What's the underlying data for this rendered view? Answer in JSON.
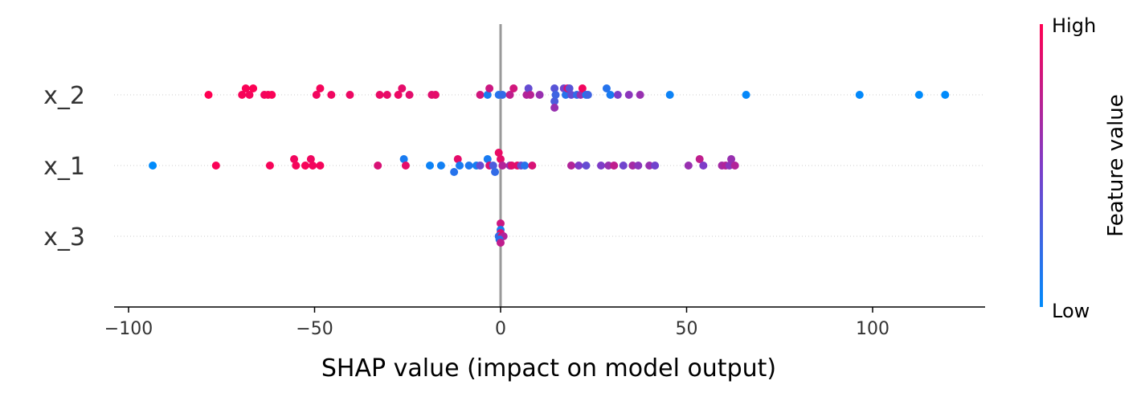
{
  "chart_data": {
    "type": "scatter",
    "title": "",
    "xlabel": "SHAP value (impact on model output)",
    "ylabel": "",
    "xlim": [
      -104,
      130
    ],
    "xticks": [
      -100,
      -50,
      0,
      50,
      100
    ],
    "xtick_labels": [
      "−100",
      "−50",
      "0",
      "50",
      "100"
    ],
    "features": [
      "x_2",
      "x_1",
      "x_3"
    ],
    "colorbar": {
      "label": "Feature value",
      "high_label": "High",
      "low_label": "Low",
      "high_color": "#ff0052",
      "mid_color": "#7e3cc8",
      "low_color": "#008bfb"
    },
    "series": [
      {
        "name": "x_2",
        "points": [
          {
            "shap": -78.5,
            "value": 1.0,
            "jitter": 0
          },
          {
            "shap": -69.5,
            "value": 0.97,
            "jitter": 0
          },
          {
            "shap": -68.5,
            "value": 0.98,
            "jitter": 1
          },
          {
            "shap": -67.5,
            "value": 0.96,
            "jitter": 0
          },
          {
            "shap": -66.5,
            "value": 0.99,
            "jitter": 1
          },
          {
            "shap": -63.5,
            "value": 0.95,
            "jitter": 0
          },
          {
            "shap": -62.5,
            "value": 0.97,
            "jitter": 0
          },
          {
            "shap": -61.5,
            "value": 0.98,
            "jitter": 0
          },
          {
            "shap": -49.5,
            "value": 0.95,
            "jitter": 0
          },
          {
            "shap": -48.5,
            "value": 0.96,
            "jitter": 1
          },
          {
            "shap": -45.5,
            "value": 0.94,
            "jitter": 0
          },
          {
            "shap": -40.5,
            "value": 0.93,
            "jitter": 0
          },
          {
            "shap": -32.5,
            "value": 0.92,
            "jitter": 0
          },
          {
            "shap": -30.5,
            "value": 0.91,
            "jitter": 0
          },
          {
            "shap": -27.5,
            "value": 0.93,
            "jitter": 0
          },
          {
            "shap": -26.5,
            "value": 0.9,
            "jitter": 1
          },
          {
            "shap": -24.5,
            "value": 0.89,
            "jitter": 0
          },
          {
            "shap": -18.5,
            "value": 0.88,
            "jitter": 0
          },
          {
            "shap": -17.5,
            "value": 0.9,
            "jitter": 0
          },
          {
            "shap": -5.5,
            "value": 0.82,
            "jitter": 0
          },
          {
            "shap": -3.5,
            "value": 0.1,
            "jitter": 0
          },
          {
            "shap": -3.0,
            "value": 0.8,
            "jitter": 1
          },
          {
            "shap": -0.5,
            "value": 0.15,
            "jitter": 0
          },
          {
            "shap": 0.5,
            "value": 0.2,
            "jitter": 0
          },
          {
            "shap": 2.5,
            "value": 0.75,
            "jitter": 0
          },
          {
            "shap": 3.5,
            "value": 0.82,
            "jitter": 1
          },
          {
            "shap": 7.0,
            "value": 0.7,
            "jitter": 0
          },
          {
            "shap": 7.5,
            "value": 0.4,
            "jitter": 1
          },
          {
            "shap": 8.0,
            "value": 0.72,
            "jitter": 0
          },
          {
            "shap": 10.5,
            "value": 0.6,
            "jitter": 0
          },
          {
            "shap": 14.5,
            "value": 0.35,
            "jitter": 1
          },
          {
            "shap": 14.5,
            "value": 0.3,
            "jitter": -1
          },
          {
            "shap": 14.5,
            "value": 0.6,
            "jitter": -2
          },
          {
            "shap": 14.8,
            "value": 0.25,
            "jitter": 0
          },
          {
            "shap": 17.0,
            "value": 0.45,
            "jitter": 1
          },
          {
            "shap": 17.5,
            "value": 0.15,
            "jitter": 0
          },
          {
            "shap": 18.0,
            "value": 0.9,
            "jitter": 1
          },
          {
            "shap": 18.5,
            "value": 0.35,
            "jitter": 1
          },
          {
            "shap": 19.0,
            "value": 0.4,
            "jitter": 0
          },
          {
            "shap": 20.5,
            "value": 0.2,
            "jitter": 0
          },
          {
            "shap": 21.5,
            "value": 0.6,
            "jitter": 0
          },
          {
            "shap": 22.0,
            "value": 0.95,
            "jitter": 1
          },
          {
            "shap": 23.0,
            "value": 0.1,
            "jitter": 0
          },
          {
            "shap": 23.5,
            "value": 0.25,
            "jitter": 0
          },
          {
            "shap": 28.5,
            "value": 0.15,
            "jitter": 1
          },
          {
            "shap": 29.5,
            "value": 0.1,
            "jitter": 0
          },
          {
            "shap": 31.5,
            "value": 0.5,
            "jitter": 0
          },
          {
            "shap": 34.5,
            "value": 0.55,
            "jitter": 0
          },
          {
            "shap": 37.5,
            "value": 0.6,
            "jitter": 0
          },
          {
            "shap": 45.5,
            "value": 0.05,
            "jitter": 0
          },
          {
            "shap": 66.0,
            "value": 0.02,
            "jitter": 0
          },
          {
            "shap": 96.5,
            "value": 0.01,
            "jitter": 0
          },
          {
            "shap": 112.5,
            "value": 0.0,
            "jitter": 0
          },
          {
            "shap": 119.5,
            "value": 0.0,
            "jitter": 0
          }
        ]
      },
      {
        "name": "x_1",
        "points": [
          {
            "shap": -93.5,
            "value": 0.0,
            "jitter": 0
          },
          {
            "shap": -76.5,
            "value": 0.98,
            "jitter": 0
          },
          {
            "shap": -62.0,
            "value": 0.97,
            "jitter": 0
          },
          {
            "shap": -55.5,
            "value": 0.95,
            "jitter": 1
          },
          {
            "shap": -55.0,
            "value": 0.96,
            "jitter": 0
          },
          {
            "shap": -52.5,
            "value": 0.97,
            "jitter": 0
          },
          {
            "shap": -51.0,
            "value": 0.94,
            "jitter": 1
          },
          {
            "shap": -50.5,
            "value": 0.95,
            "jitter": 0
          },
          {
            "shap": -48.5,
            "value": 0.96,
            "jitter": 0
          },
          {
            "shap": -33.0,
            "value": 0.85,
            "jitter": 0
          },
          {
            "shap": -26.0,
            "value": 0.1,
            "jitter": 1
          },
          {
            "shap": -25.5,
            "value": 0.9,
            "jitter": 0
          },
          {
            "shap": -19.0,
            "value": 0.05,
            "jitter": 0
          },
          {
            "shap": -16.0,
            "value": 0.07,
            "jitter": 0
          },
          {
            "shap": -12.5,
            "value": 0.15,
            "jitter": -1
          },
          {
            "shap": -11.5,
            "value": 0.9,
            "jitter": 1
          },
          {
            "shap": -11.0,
            "value": 0.1,
            "jitter": 0
          },
          {
            "shap": -8.5,
            "value": 0.12,
            "jitter": 0
          },
          {
            "shap": -6.5,
            "value": 0.08,
            "jitter": 0
          },
          {
            "shap": -5.5,
            "value": 0.4,
            "jitter": 0
          },
          {
            "shap": -3.5,
            "value": 0.1,
            "jitter": 1
          },
          {
            "shap": -3.0,
            "value": 0.85,
            "jitter": 0
          },
          {
            "shap": -2.0,
            "value": 0.3,
            "jitter": 0
          },
          {
            "shap": -1.5,
            "value": 0.2,
            "jitter": -1
          },
          {
            "shap": -0.5,
            "value": 0.92,
            "jitter": 2
          },
          {
            "shap": 0.0,
            "value": 0.9,
            "jitter": 1
          },
          {
            "shap": 0.5,
            "value": 0.7,
            "jitter": 0
          },
          {
            "shap": 2.5,
            "value": 0.6,
            "jitter": 0
          },
          {
            "shap": 3.0,
            "value": 0.88,
            "jitter": 0
          },
          {
            "shap": 4.5,
            "value": 0.9,
            "jitter": 0
          },
          {
            "shap": 5.5,
            "value": 0.4,
            "jitter": 0
          },
          {
            "shap": 6.5,
            "value": 0.15,
            "jitter": 0
          },
          {
            "shap": 8.5,
            "value": 0.85,
            "jitter": 0
          },
          {
            "shap": 19.0,
            "value": 0.7,
            "jitter": 0
          },
          {
            "shap": 21.0,
            "value": 0.5,
            "jitter": 0
          },
          {
            "shap": 23.0,
            "value": 0.4,
            "jitter": 0
          },
          {
            "shap": 27.0,
            "value": 0.5,
            "jitter": 0
          },
          {
            "shap": 29.0,
            "value": 0.6,
            "jitter": 0
          },
          {
            "shap": 30.5,
            "value": 0.75,
            "jitter": 0
          },
          {
            "shap": 33.0,
            "value": 0.45,
            "jitter": 0
          },
          {
            "shap": 35.5,
            "value": 0.65,
            "jitter": 0
          },
          {
            "shap": 37.0,
            "value": 0.55,
            "jitter": 0
          },
          {
            "shap": 40.0,
            "value": 0.6,
            "jitter": 0
          },
          {
            "shap": 41.5,
            "value": 0.45,
            "jitter": 0
          },
          {
            "shap": 50.5,
            "value": 0.6,
            "jitter": 0
          },
          {
            "shap": 53.5,
            "value": 0.75,
            "jitter": 1
          },
          {
            "shap": 54.5,
            "value": 0.5,
            "jitter": 0
          },
          {
            "shap": 59.5,
            "value": 0.65,
            "jitter": 0
          },
          {
            "shap": 60.5,
            "value": 0.7,
            "jitter": 0
          },
          {
            "shap": 61.5,
            "value": 0.55,
            "jitter": 0
          },
          {
            "shap": 62.0,
            "value": 0.6,
            "jitter": 1
          },
          {
            "shap": 63.0,
            "value": 0.7,
            "jitter": 0
          }
        ]
      },
      {
        "name": "x_3",
        "points": [
          {
            "shap": 0.0,
            "value": 0.8,
            "jitter": 2
          },
          {
            "shap": 0.0,
            "value": 0.1,
            "jitter": 1
          },
          {
            "shap": 0.0,
            "value": 0.85,
            "jitter": 0.5
          },
          {
            "shap": -0.5,
            "value": 0.2,
            "jitter": 0
          },
          {
            "shap": 0.3,
            "value": 0.9,
            "jitter": 0
          },
          {
            "shap": 0.8,
            "value": 0.7,
            "jitter": 0
          },
          {
            "shap": -0.3,
            "value": 0.15,
            "jitter": -0.5
          },
          {
            "shap": 0.0,
            "value": 0.75,
            "jitter": -1
          }
        ]
      }
    ]
  }
}
